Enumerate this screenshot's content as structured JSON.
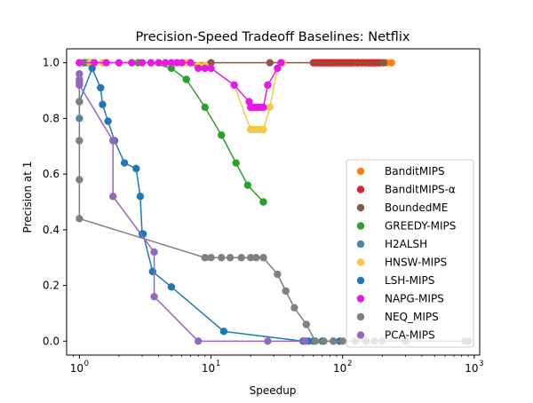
{
  "chart_data": {
    "type": "scatter",
    "title": "Precision-Speed Tradeoff Baselines: Netflix",
    "xlabel": "Speedup",
    "ylabel": "Precision at 1",
    "xscale": "log",
    "xlim": [
      0.8,
      1100
    ],
    "ylim": [
      -0.05,
      1.05
    ],
    "xticks": [
      1,
      10,
      100,
      1000
    ],
    "xtick_labels": [
      "10",
      "10",
      "10",
      "10"
    ],
    "xtick_exponents": [
      "0",
      "1",
      "2",
      "3"
    ],
    "yticks": [
      0.0,
      0.2,
      0.4,
      0.6,
      0.8,
      1.0
    ],
    "ytick_labels": [
      "0.0",
      "0.2",
      "0.4",
      "0.6",
      "0.8",
      "1.0"
    ],
    "legend_position": "lower-right",
    "series": [
      {
        "name": "BanditMIPS",
        "color": "#ff7f0e",
        "connected": true,
        "x": [
          70,
          75,
          80,
          85,
          90,
          95,
          100,
          106,
          112,
          118,
          125,
          132,
          140,
          148,
          157,
          166,
          176,
          188,
          200,
          215,
          235
        ],
        "y": [
          1,
          1,
          1,
          1,
          1,
          1,
          1,
          1,
          1,
          1,
          1,
          1,
          1,
          1,
          1,
          1,
          1,
          1,
          1,
          1,
          1
        ]
      },
      {
        "name": "BanditMIPS-α",
        "color": "#d62728",
        "connected": true,
        "x": [
          60,
          63,
          66,
          69,
          72,
          75,
          78,
          82,
          86,
          90,
          95,
          100,
          105,
          110,
          115,
          120,
          130,
          140,
          150,
          160,
          170,
          180,
          190
        ],
        "y": [
          1,
          1,
          1,
          1,
          1,
          1,
          1,
          1,
          1,
          1,
          1,
          1,
          1,
          1,
          1,
          1,
          1,
          1,
          1,
          1,
          1,
          1,
          1
        ]
      },
      {
        "name": "BoundedME",
        "color": "#8c564b",
        "connected": true,
        "x": [
          1.0,
          1.08,
          1.17,
          1.25,
          1.5,
          2.5,
          5,
          10,
          28,
          205
        ],
        "y": [
          1,
          1,
          1,
          1,
          1,
          1,
          1,
          1,
          1,
          1
        ]
      },
      {
        "name": "GREEDY-MIPS",
        "color": "#2ca02c",
        "connected": true,
        "x": [
          1.0,
          1.1,
          1.25,
          1.5,
          2.0,
          2.8,
          3.5,
          5.0,
          6.5,
          9.0,
          12.0,
          15.5,
          19.0,
          25.0
        ],
        "y": [
          1.0,
          1.0,
          1.0,
          1.0,
          1.0,
          1.0,
          1.0,
          0.98,
          0.94,
          0.84,
          0.74,
          0.64,
          0.56,
          0.5
        ]
      },
      {
        "name": "H2ALSH",
        "color": "#4c87a3",
        "connected": true,
        "x": [
          1.0,
          1.0
        ],
        "y": [
          0.93,
          0.8
        ]
      },
      {
        "name": "HNSW-MIPS",
        "color": "#f5c842",
        "connected": true,
        "x": [
          1.0,
          1.2,
          1.5,
          2.0,
          2.5,
          3.0,
          3.5,
          4.0,
          4.5,
          5.0,
          5.5,
          6.0,
          6.5,
          7.0,
          8.0,
          9.0,
          10.0,
          15.0,
          20.0,
          21.0,
          22.0,
          23.0,
          24.0,
          25.0,
          28.0,
          32.0,
          35.0
        ],
        "y": [
          1.0,
          1.0,
          1.0,
          1.0,
          1.0,
          1.0,
          1.0,
          1.0,
          1.0,
          1.0,
          1.0,
          1.0,
          1.0,
          1.0,
          0.99,
          0.99,
          0.98,
          0.92,
          0.76,
          0.76,
          0.76,
          0.76,
          0.76,
          0.76,
          0.84,
          0.98,
          1.0
        ]
      },
      {
        "name": "LSH-MIPS",
        "color": "#1f77b4",
        "connected": true,
        "x": [
          1.0,
          1.25,
          1.45,
          1.5,
          1.65,
          1.85,
          2.2,
          2.7,
          2.9,
          3.0,
          3.05,
          3.6,
          5.0,
          12.5,
          50.0,
          52.0,
          55.0,
          60.0,
          70.0,
          85.0,
          95.0
        ],
        "y": [
          0.86,
          0.98,
          0.91,
          0.85,
          0.79,
          0.72,
          0.64,
          0.62,
          0.52,
          0.385,
          0.385,
          0.25,
          0.195,
          0.035,
          0.0,
          0.0,
          0.0,
          0.0,
          0.0,
          0.0,
          0.0
        ]
      },
      {
        "name": "NAPG-MIPS",
        "color": "#e619e6",
        "connected": true,
        "x": [
          1.0,
          1.3,
          1.6,
          2.0,
          2.5,
          3.0,
          3.5,
          4.0,
          4.5,
          5.0,
          5.5,
          6.0,
          7.0,
          8.0,
          9.0,
          10.0,
          15.0,
          19.5,
          20.0,
          21.0,
          22.0,
          23.0,
          24.0,
          25.0,
          27.0,
          32.0,
          34.0
        ],
        "y": [
          1.0,
          1.0,
          1.0,
          1.0,
          1.0,
          1.0,
          1.0,
          1.0,
          1.0,
          1.0,
          1.0,
          1.0,
          1.0,
          0.98,
          0.98,
          0.98,
          0.92,
          0.86,
          0.84,
          0.84,
          0.84,
          0.84,
          0.84,
          0.84,
          0.92,
          0.98,
          1.0
        ]
      },
      {
        "name": "NEQ_MIPS",
        "color": "#7f7f7f",
        "connected": true,
        "x": [
          1.0,
          1.0,
          1.0,
          1.0,
          1.0,
          9.0,
          10.0,
          12.0,
          14.0,
          17.0,
          20.0,
          22.0,
          25.0,
          32.0,
          37.0,
          43.0,
          53.0,
          62.0,
          72.0,
          85.0,
          100.0,
          125.0,
          150.0,
          175.0,
          200.0,
          300.0,
          850.0,
          900.0
        ],
        "y": [
          0.92,
          0.86,
          0.72,
          0.58,
          0.44,
          0.3,
          0.3,
          0.3,
          0.3,
          0.3,
          0.3,
          0.3,
          0.3,
          0.24,
          0.18,
          0.12,
          0.06,
          0.0,
          0.0,
          0.0,
          0.0,
          0.0,
          0.0,
          0.0,
          0.0,
          0.0,
          0.0,
          0.0
        ]
      },
      {
        "name": "PCA-MIPS",
        "color": "#9467bd",
        "connected": true,
        "x": [
          1.0,
          1.0,
          1.0,
          1.8,
          1.8,
          3.7,
          3.7,
          8.0,
          27.0,
          52.0
        ],
        "y": [
          0.96,
          0.94,
          0.92,
          0.72,
          0.52,
          0.32,
          0.16,
          0.0,
          0.0,
          0.0
        ]
      }
    ]
  }
}
